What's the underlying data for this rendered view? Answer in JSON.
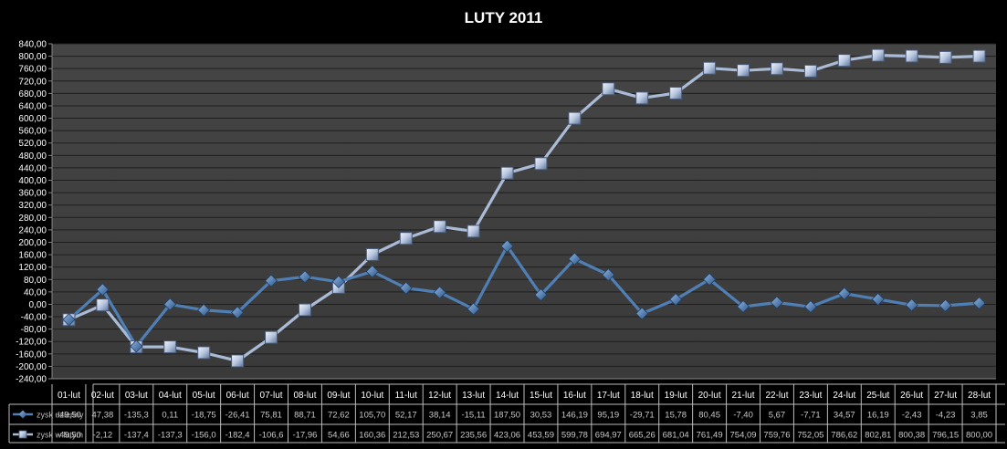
{
  "chart_data": {
    "type": "line",
    "title": "LUTY 2011",
    "xlabel": "",
    "ylabel": "",
    "ylim": [
      -240,
      840
    ],
    "ytick_step": 40,
    "ytick_labels": [
      "-240,00",
      "-200,00",
      "-160,00",
      "-120,00",
      "-80,00",
      "-40,00",
      "0,00",
      "40,00",
      "80,00",
      "120,00",
      "160,00",
      "200,00",
      "240,00",
      "280,00",
      "320,00",
      "360,00",
      "400,00",
      "440,00",
      "480,00",
      "520,00",
      "560,00",
      "600,00",
      "640,00",
      "680,00",
      "720,00",
      "760,00",
      "800,00",
      "840,00"
    ],
    "grid": true,
    "legend": "data-table",
    "categories": [
      "01-lut",
      "02-lut",
      "03-lut",
      "04-lut",
      "05-lut",
      "06-lut",
      "07-lut",
      "08-lut",
      "09-lut",
      "10-lut",
      "11-lut",
      "12-lut",
      "13-lut",
      "14-lut",
      "15-lut",
      "16-lut",
      "17-lut",
      "18-lut",
      "19-lut",
      "20-lut",
      "21-lut",
      "22-lut",
      "23-lut",
      "24-lut",
      "25-lut",
      "26-lut",
      "27-lut",
      "28-lut"
    ],
    "series": [
      {
        "name": "zysk dzienny",
        "color": "#4f7fb5",
        "marker": "diamond",
        "values": [
          -49.5,
          47.38,
          -135.3,
          0.11,
          -18.75,
          -26.41,
          75.81,
          88.71,
          72.62,
          105.7,
          52.17,
          38.14,
          -15.11,
          187.5,
          30.53,
          146.19,
          95.19,
          -29.71,
          15.78,
          80.45,
          -7.4,
          5.67,
          -7.71,
          34.57,
          16.19,
          -2.43,
          -4.23,
          3.85
        ],
        "labels": [
          "-49,50",
          "47,38",
          "-135,3",
          "0,11",
          "-18,75",
          "-26,41",
          "75,81",
          "88,71",
          "72,62",
          "105,70",
          "52,17",
          "38,14",
          "-15,11",
          "187,50",
          "30,53",
          "146,19",
          "95,19",
          "-29,71",
          "15,78",
          "80,45",
          "-7,40",
          "5,67",
          "-7,71",
          "34,57",
          "16,19",
          "-2,43",
          "-4,23",
          "3,85"
        ]
      },
      {
        "name": "zysk w lutym",
        "color": "#a9bbd6",
        "marker": "square",
        "values": [
          -49.5,
          -2.12,
          -137.4,
          -137.3,
          -156.0,
          -182.4,
          -106.6,
          -17.96,
          54.66,
          160.36,
          212.53,
          250.67,
          235.56,
          423.06,
          453.59,
          599.78,
          694.97,
          665.26,
          681.04,
          761.49,
          754.09,
          759.76,
          752.05,
          786.62,
          802.81,
          800.38,
          796.15,
          800.0
        ],
        "labels": [
          "-49,50",
          "-2,12",
          "-137,4",
          "-137,3",
          "-156,0",
          "-182,4",
          "-106,6",
          "-17,96",
          "54,66",
          "160,36",
          "212,53",
          "250,67",
          "235,56",
          "423,06",
          "453,59",
          "599,78",
          "694,97",
          "665,26",
          "681,04",
          "761,49",
          "754,09",
          "759,76",
          "752,05",
          "786,62",
          "802,81",
          "800,38",
          "796,15",
          "800,00"
        ]
      }
    ]
  }
}
